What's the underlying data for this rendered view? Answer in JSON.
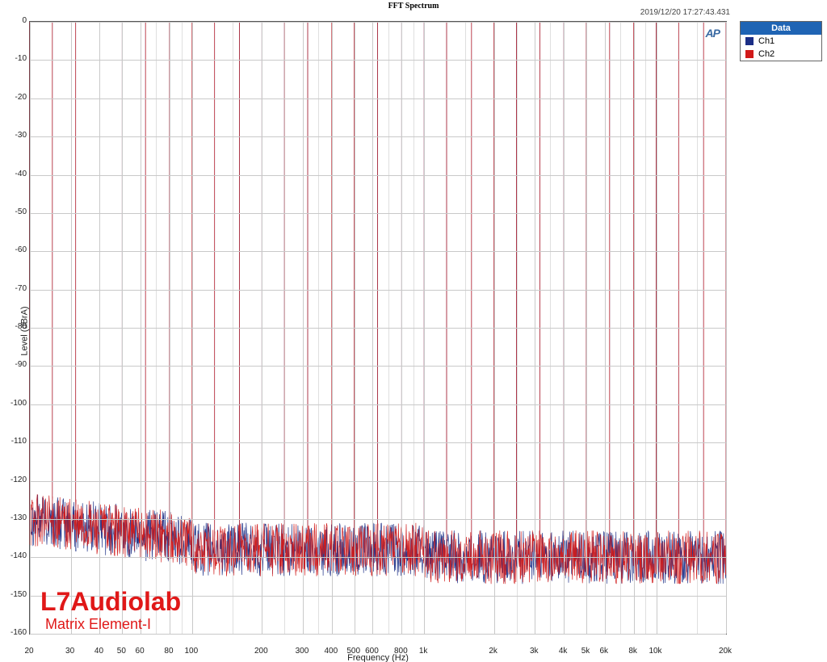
{
  "title": "FFT Spectrum",
  "timestamp": "2019/12/20 17:27:43.431",
  "ap_logo_text": "AP",
  "watermark": {
    "main": "L7Audiolab",
    "sub": "Matrix Element-I",
    "main_fontsize": 32,
    "sub_fontsize": 18
  },
  "legend": {
    "header": "Data",
    "items": [
      {
        "label": "Ch1",
        "color": "#1b2e86"
      },
      {
        "label": "Ch2",
        "color": "#d11a1a"
      }
    ]
  },
  "chart": {
    "type": "line",
    "background_color": "#ffffff",
    "grid_color": "#c9c9c9",
    "border_color": "#555555",
    "ylabel": "Level (dBrA)",
    "xlabel": "Frequency (Hz)",
    "label_fontsize": 11,
    "tick_fontsize": 10,
    "x_scale": "log",
    "y_scale": "linear",
    "xlim": [
      20,
      20000
    ],
    "ylim": [
      -160,
      0
    ],
    "ytick_labels": [
      "0",
      "-10",
      "-20",
      "-30",
      "-40",
      "-50",
      "-60",
      "-70",
      "-80",
      "-90",
      "-100",
      "-110",
      "-120",
      "-130",
      "-140",
      "-150",
      "-160"
    ],
    "ytick_values": [
      0,
      -10,
      -20,
      -30,
      -40,
      -50,
      -60,
      -70,
      -80,
      -90,
      -100,
      -110,
      -120,
      -130,
      -140,
      -150,
      -160
    ],
    "xtick_labels": [
      "20",
      "30",
      "40",
      "50",
      "60",
      "80",
      "100",
      "200",
      "300",
      "400",
      "500",
      "600",
      "800",
      "1k",
      "2k",
      "3k",
      "4k",
      "5k",
      "6k",
      "8k",
      "10k",
      "20k"
    ],
    "xtick_values": [
      20,
      30,
      40,
      50,
      60,
      80,
      100,
      200,
      300,
      400,
      500,
      600,
      800,
      1000,
      2000,
      3000,
      4000,
      5000,
      6000,
      8000,
      10000,
      20000
    ],
    "x_minor_ticks": [
      70,
      90,
      150,
      250,
      350,
      700,
      900,
      1500,
      2500,
      3500,
      7000,
      9000,
      15000
    ],
    "peaks_hz": [
      20,
      25,
      31.5,
      40,
      50,
      63,
      80,
      100,
      125,
      160,
      200,
      250,
      315,
      400,
      500,
      630,
      800,
      1000,
      1250,
      1600,
      2000,
      2500,
      3150,
      4000,
      5000,
      6300,
      8000,
      10000,
      12500,
      16000,
      20000
    ],
    "peak_level_db": 0,
    "noise_floor_reference_db": {
      "low": -130,
      "mid": -138,
      "high": -140
    },
    "noise_jitter_db": 7,
    "series": [
      {
        "name": "Ch1",
        "color": "#1b2e86",
        "linewidth": 0.7,
        "opacity": 0.95
      },
      {
        "name": "Ch2",
        "color": "#d11a1a",
        "linewidth": 0.7,
        "opacity": 0.95
      }
    ]
  }
}
